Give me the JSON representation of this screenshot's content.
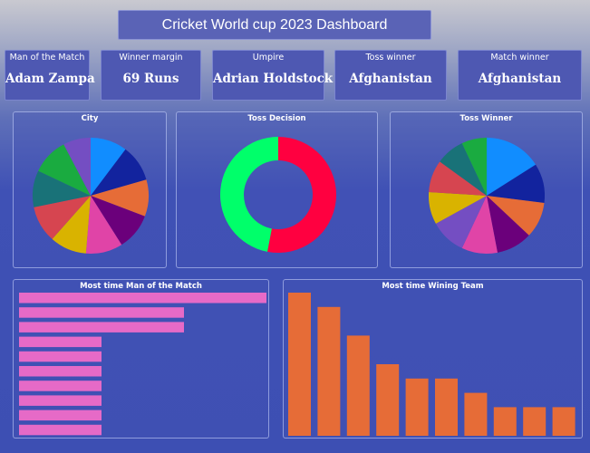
{
  "dashboard": {
    "title": "Cricket World cup 2023 Dashboard"
  },
  "cards": [
    {
      "label": "Man of the Match",
      "value": "Adam Zampa"
    },
    {
      "label": "Winner margin",
      "value": "69 Runs"
    },
    {
      "label": "Umpire",
      "value": "Adrian Holdstock"
    },
    {
      "label": "Toss winner",
      "value": "Afghanistan"
    },
    {
      "label": "Match winner",
      "value": "Afghanistan"
    }
  ],
  "chart_data": [
    {
      "type": "pie",
      "title": "City",
      "values": [
        10,
        10,
        10,
        10,
        10,
        10,
        10,
        10,
        10,
        7.5
      ],
      "colors": [
        "#118dff",
        "#12239e",
        "#e66c37",
        "#6b007b",
        "#e044a7",
        "#d9b300",
        "#d64550",
        "#197278",
        "#1aab40",
        "#744ec2"
      ]
    },
    {
      "type": "pie",
      "title": "Toss Decision",
      "donut": true,
      "values": [
        53,
        47
      ],
      "colors": [
        "#ff0040",
        "#00ff6a"
      ]
    },
    {
      "type": "pie",
      "title": "Toss Winner",
      "values": [
        16,
        11,
        10,
        10,
        10,
        10,
        9,
        9,
        8,
        7
      ],
      "colors": [
        "#118dff",
        "#12239e",
        "#e66c37",
        "#6b007b",
        "#e044a7",
        "#744ec2",
        "#d9b300",
        "#d64550",
        "#197278",
        "#1aab40"
      ]
    },
    {
      "type": "bar",
      "orientation": "horizontal",
      "title": "Most time Man of the Match",
      "values": [
        3,
        2,
        2,
        1,
        1,
        1,
        1,
        1,
        1,
        1
      ],
      "color": "#e66ac7"
    },
    {
      "type": "bar",
      "orientation": "vertical",
      "title": "Most time Wining Team",
      "values": [
        10,
        9,
        7,
        5,
        4,
        4,
        3,
        2,
        2,
        2
      ],
      "color": "#e66c37"
    }
  ]
}
